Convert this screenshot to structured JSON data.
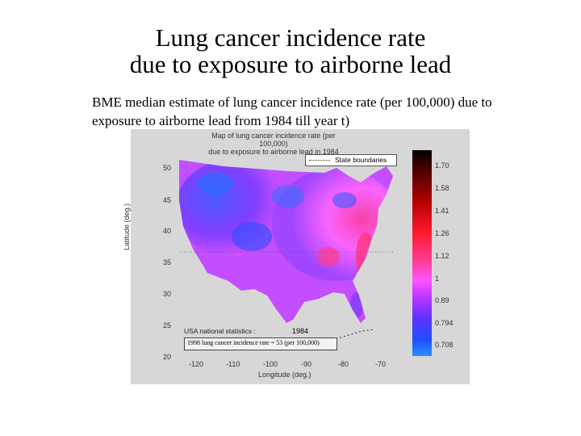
{
  "slide": {
    "title_line1": "Lung cancer incidence rate",
    "title_line2": "due to exposure to airborne lead",
    "caption": "BME median estimate of lung cancer incidence rate (per 100,000) due to exposure to airborne lead from 1984 till year t)"
  },
  "map": {
    "title_line1": "Map of lung cancer incidence rate (per 100,000)",
    "title_line2": "due to exposure to airborne lead in 1984",
    "ylabel": "Latitude (deg.)",
    "xlabel": "Longitude (deg.)",
    "yticks": [
      "50",
      "45",
      "40",
      "35",
      "30",
      "25",
      "20"
    ],
    "xticks": [
      "-120",
      "-110",
      "-100",
      "-90",
      "-80",
      "-70"
    ],
    "legend": "State boundaries",
    "colorbar_ticks": [
      "1.70",
      "1.58",
      "1.41",
      "1.26",
      "1.12",
      "1",
      "0.89",
      "0.794",
      "0.708"
    ],
    "stats_label": "USA national statistics :",
    "stats_value": "1998 lung cancer incidence rate = 53 (per 100,000)",
    "year": "1984",
    "colors": {
      "low": "#2a8fff",
      "mid_low": "#5b33ff",
      "mid": "#ff55ff",
      "high": "#ff1a2e",
      "max": "#000000"
    }
  }
}
